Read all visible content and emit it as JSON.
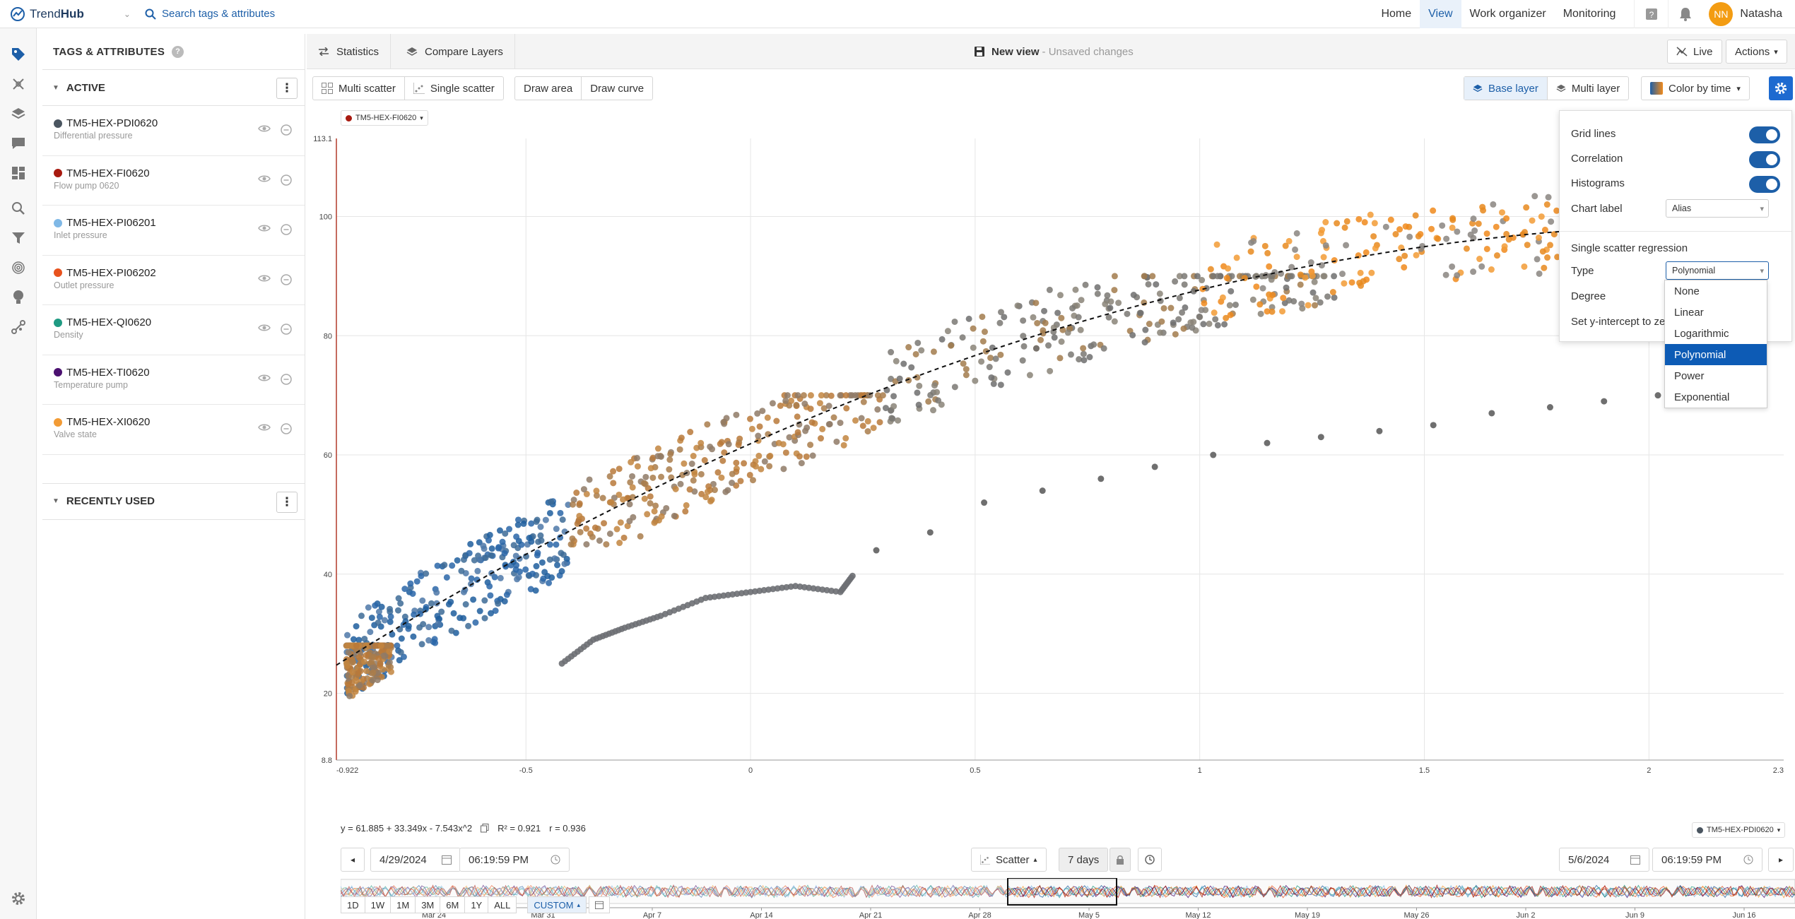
{
  "app": {
    "name_a": "Trend",
    "name_b": "Hub",
    "search_placeholder": "Search tags & attributes"
  },
  "nav": {
    "home": "Home",
    "view": "View",
    "work_organizer": "Work organizer",
    "monitoring": "Monitoring",
    "user_initials": "NN",
    "user_name": "Natasha"
  },
  "tags_panel": {
    "title": "TAGS & ATTRIBUTES",
    "help": "?",
    "active_label": "ACTIVE",
    "recent_label": "RECENTLY USED",
    "items": [
      {
        "name": "TM5-HEX-PDI0620",
        "desc": "Differential pressure",
        "color": "#4a5560"
      },
      {
        "name": "TM5-HEX-FI0620",
        "desc": "Flow pump 0620",
        "color": "#a81a10"
      },
      {
        "name": "TM5-HEX-PI06201",
        "desc": "Inlet pressure",
        "color": "#7fb8e6"
      },
      {
        "name": "TM5-HEX-PI06202",
        "desc": "Outlet pressure",
        "color": "#e8521d"
      },
      {
        "name": "TM5-HEX-QI0620",
        "desc": "Density",
        "color": "#1f9a82"
      },
      {
        "name": "TM5-HEX-TI0620",
        "desc": "Temperature pump",
        "color": "#4b1070"
      },
      {
        "name": "TM5-HEX-XI0620",
        "desc": "Valve state",
        "color": "#f29b35"
      }
    ]
  },
  "main_tabs": {
    "statistics": "Statistics",
    "compare_layers": "Compare Layers"
  },
  "view": {
    "name": "New view",
    "status": "- Unsaved changes"
  },
  "toolbar": {
    "live": "Live",
    "actions": "Actions",
    "multi_scatter": "Multi scatter",
    "single_scatter": "Single scatter",
    "draw_area": "Draw area",
    "draw_curve": "Draw curve",
    "base_layer": "Base layer",
    "multi_layer": "Multi layer",
    "color_by_time": "Color by time"
  },
  "chart_badges": {
    "y_tag": "TM5-HEX-FI0620",
    "x_tag": "TM5-HEX-PDI0620"
  },
  "regression": {
    "equation": "y = 61.885 + 33.349x - 7.543x^2",
    "r2": "R² = 0.921",
    "r": "r = 0.936"
  },
  "settings": {
    "grid_lines": "Grid lines",
    "correlation": "Correlation",
    "histograms": "Histograms",
    "chart_label": "Chart label",
    "chart_label_value": "Alias",
    "regression_title": "Single scatter regression",
    "type": "Type",
    "type_value": "Polynomial",
    "degree": "Degree",
    "set_intercept": "Set y-intercept to zero",
    "options": [
      "None",
      "Linear",
      "Logarithmic",
      "Polynomial",
      "Power",
      "Exponential"
    ],
    "selected_option": "Polynomial"
  },
  "time": {
    "start_date": "4/29/2024",
    "start_time": "06:19:59 PM",
    "end_date": "5/6/2024",
    "end_time": "06:19:59 PM",
    "mode": "Scatter",
    "duration": "7 days",
    "axis_labels": [
      "Mar 24",
      "Mar 31",
      "Apr 7",
      "Apr 14",
      "Apr 21",
      "Apr 28",
      "May 5",
      "May 12",
      "May 19",
      "May 26",
      "Jun 2",
      "Jun 9",
      "Jun 16"
    ],
    "ranges": [
      "1D",
      "1W",
      "1M",
      "3M",
      "6M",
      "1Y",
      "ALL"
    ],
    "custom": "CUSTOM"
  },
  "chart_data": {
    "type": "scatter",
    "x_ticks": [
      "-0.922",
      "-0.5",
      "0",
      "0.5",
      "1",
      "1.5",
      "2",
      "2.3"
    ],
    "y_ticks": [
      "8.8",
      "20",
      "40",
      "60",
      "80",
      "100",
      "113.1"
    ],
    "xlim": [
      -0.922,
      2.3
    ],
    "ylim": [
      8.8,
      113.1
    ],
    "grid": true,
    "color_by_time": true,
    "regression": {
      "type": "polynomial",
      "degree": 2,
      "coef": [
        61.885,
        33.349,
        -7.543
      ]
    },
    "point_clusters": [
      {
        "x_range": [
          -0.9,
          -0.4
        ],
        "y_range": [
          20,
          60
        ],
        "color": "blue-early"
      },
      {
        "x_range": [
          -0.9,
          -0.8
        ],
        "y_range": [
          8.8,
          28
        ],
        "color": "brown"
      },
      {
        "x_range": [
          -0.4,
          0.3
        ],
        "y_range": [
          45,
          70
        ],
        "color": "brown"
      },
      {
        "x_range": [
          0.3,
          1.3
        ],
        "y_range": [
          60,
          90
        ],
        "color": "gray"
      },
      {
        "x_range": [
          1.0,
          2.3
        ],
        "y_range": [
          80,
          105
        ],
        "color": "orange-late"
      }
    ],
    "series_path": [
      {
        "x": -0.42,
        "y": 25
      },
      {
        "x": -0.35,
        "y": 29
      },
      {
        "x": -0.28,
        "y": 31
      },
      {
        "x": -0.2,
        "y": 33
      },
      {
        "x": -0.1,
        "y": 36
      },
      {
        "x": 0.0,
        "y": 37
      },
      {
        "x": 0.1,
        "y": 38
      },
      {
        "x": 0.2,
        "y": 37
      },
      {
        "x": 0.23,
        "y": 40
      }
    ],
    "sparse_points": [
      {
        "x": 0.28,
        "y": 44
      },
      {
        "x": 0.4,
        "y": 47
      },
      {
        "x": 0.52,
        "y": 52
      },
      {
        "x": 0.65,
        "y": 54
      },
      {
        "x": 0.78,
        "y": 56
      },
      {
        "x": 0.9,
        "y": 58
      },
      {
        "x": 1.03,
        "y": 60
      },
      {
        "x": 1.15,
        "y": 62
      },
      {
        "x": 1.27,
        "y": 63
      },
      {
        "x": 1.4,
        "y": 64
      },
      {
        "x": 1.52,
        "y": 65
      },
      {
        "x": 1.65,
        "y": 67
      },
      {
        "x": 1.78,
        "y": 68
      },
      {
        "x": 1.9,
        "y": 69
      },
      {
        "x": 2.02,
        "y": 70
      },
      {
        "x": 2.1,
        "y": 71
      }
    ]
  }
}
